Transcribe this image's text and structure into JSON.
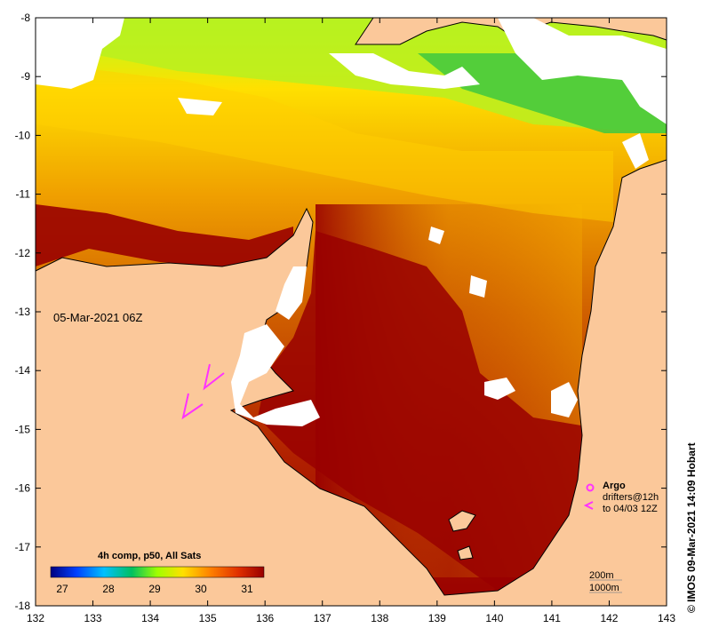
{
  "map": {
    "date_label": "05-Mar-2021 06Z",
    "lon_ticks": [
      "132",
      "133",
      "134",
      "135",
      "136",
      "137",
      "138",
      "139",
      "140",
      "141",
      "142",
      "143"
    ],
    "lat_ticks": [
      "-8",
      "-9",
      "-10",
      "-11",
      "-12",
      "-13",
      "-14",
      "-15",
      "-16",
      "-17",
      "-18"
    ],
    "colorbar": {
      "title": "4h comp, p50, All Sats",
      "ticks": [
        "27",
        "28",
        "29",
        "30",
        "31"
      ]
    },
    "legend": {
      "argo": "Argo",
      "drifters_line1": "drifters@12h",
      "drifters_line2": "to 04/03 12Z"
    },
    "depth_legend": {
      "line1": "200m",
      "line2": "1000m"
    },
    "copyright": "© IMOS 09-Mar-2021 14:09 Hobart",
    "colors": {
      "land": "#fbc89a",
      "warm": "#990000",
      "cloud": "#ffffff",
      "drifter": "#ff33ff"
    }
  }
}
